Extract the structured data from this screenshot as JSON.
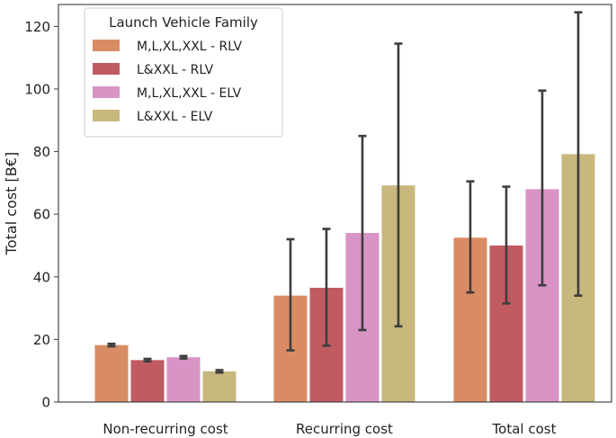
{
  "chart_data": {
    "type": "bar",
    "title": "",
    "xlabel": "",
    "ylabel": "Total cost [B€]",
    "ylim": [
      0,
      127
    ],
    "yticks": [
      0,
      20,
      40,
      60,
      80,
      100,
      120
    ],
    "grid": false,
    "categories": [
      "Non-recurring cost",
      "Recurring cost",
      "Total cost"
    ],
    "legend": {
      "title": "Launch Vehicle Family",
      "placement": "top-left"
    },
    "series": [
      {
        "name": "M,L,XL,XXL - RLV",
        "color": "#D98C63",
        "values": [
          18.2,
          34.0,
          52.5
        ],
        "error_low": [
          17.8,
          16.5,
          35.0
        ],
        "error_high": [
          18.6,
          52.0,
          70.5
        ]
      },
      {
        "name": "L&XXL - RLV",
        "color": "#C15B62",
        "values": [
          13.4,
          36.5,
          50.0
        ],
        "error_low": [
          13.0,
          18.0,
          31.5
        ],
        "error_high": [
          13.8,
          55.3,
          68.8
        ]
      },
      {
        "name": "M,L,XL,XXL - ELV",
        "color": "#D994C6",
        "values": [
          14.3,
          54.0,
          68.0
        ],
        "error_low": [
          13.9,
          23.0,
          37.3
        ],
        "error_high": [
          14.7,
          85.0,
          99.5
        ]
      },
      {
        "name": "L&XXL - ELV",
        "color": "#C8B87D",
        "values": [
          9.8,
          69.2,
          79.2
        ],
        "error_low": [
          9.4,
          24.2,
          34.0
        ],
        "error_high": [
          10.2,
          114.5,
          124.5
        ]
      }
    ]
  }
}
